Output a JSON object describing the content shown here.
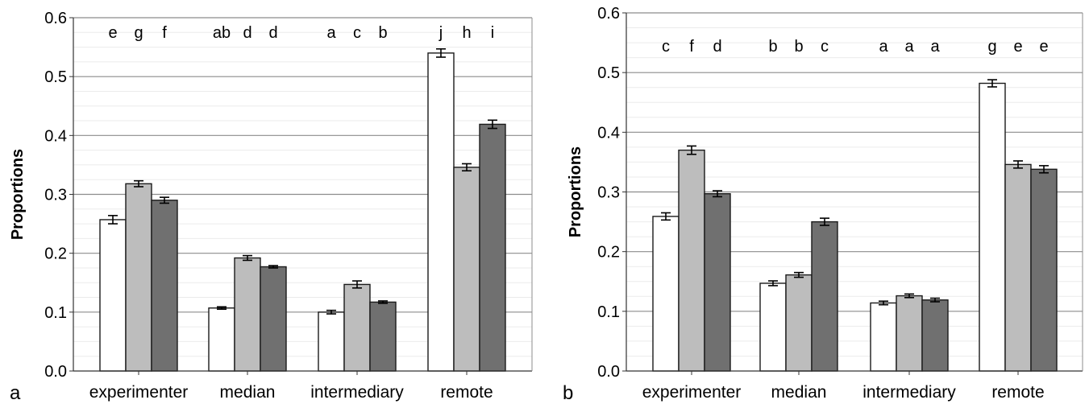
{
  "chart_data": [
    {
      "type": "bar",
      "panel_label": "a",
      "ylabel": "Proportions",
      "ylim": [
        0,
        0.6
      ],
      "yticks": [
        "0.0",
        "0.1",
        "0.2",
        "0.3",
        "0.4",
        "0.5",
        "0.6"
      ],
      "grid": true,
      "categories": [
        "experimenter",
        "median",
        "intermediary",
        "remote"
      ],
      "series": [
        {
          "color": "#ffffff",
          "values": [
            0.257,
            0.107,
            0.1,
            0.54
          ],
          "errors": [
            0.007,
            0.002,
            0.003,
            0.007
          ]
        },
        {
          "color": "#bdbdbd",
          "values": [
            0.318,
            0.192,
            0.147,
            0.346
          ],
          "errors": [
            0.005,
            0.004,
            0.006,
            0.006
          ]
        },
        {
          "color": "#707070",
          "values": [
            0.29,
            0.177,
            0.117,
            0.419
          ],
          "errors": [
            0.005,
            0.002,
            0.002,
            0.007
          ]
        }
      ],
      "significance_letters": [
        [
          "e",
          "g",
          "f"
        ],
        [
          "ab",
          "d",
          "d"
        ],
        [
          "a",
          "c",
          "b"
        ],
        [
          "j",
          "h",
          "i"
        ]
      ]
    },
    {
      "type": "bar",
      "panel_label": "b",
      "ylabel": "Proportions",
      "ylim": [
        0,
        0.6
      ],
      "yticks": [
        "0.0",
        "0.1",
        "0.2",
        "0.3",
        "0.4",
        "0.5",
        "0.6"
      ],
      "grid": true,
      "categories": [
        "experimenter",
        "median",
        "intermediary",
        "remote"
      ],
      "series": [
        {
          "color": "#ffffff",
          "values": [
            0.259,
            0.147,
            0.114,
            0.482
          ],
          "errors": [
            0.006,
            0.004,
            0.003,
            0.006
          ]
        },
        {
          "color": "#bdbdbd",
          "values": [
            0.37,
            0.161,
            0.126,
            0.346
          ],
          "errors": [
            0.007,
            0.004,
            0.003,
            0.006
          ]
        },
        {
          "color": "#707070",
          "values": [
            0.297,
            0.25,
            0.119,
            0.338
          ],
          "errors": [
            0.005,
            0.006,
            0.003,
            0.006
          ]
        }
      ],
      "significance_letters": [
        [
          "c",
          "f",
          "d"
        ],
        [
          "b",
          "b",
          "c"
        ],
        [
          "a",
          "a",
          "a"
        ],
        [
          "g",
          "e",
          "e"
        ]
      ]
    }
  ]
}
